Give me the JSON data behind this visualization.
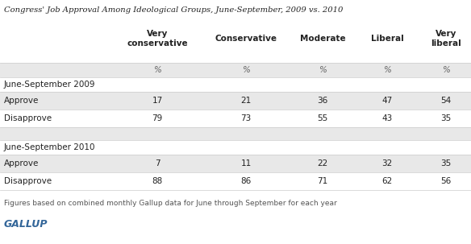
{
  "title": "Congress' Job Approval Among Ideological Groups, June-September, 2009 vs. 2010",
  "columns": [
    "Very\nconservative",
    "Conservative",
    "Moderate",
    "Liberal",
    "Very\nliberal"
  ],
  "pct_label": "%",
  "section1_label": "June-September 2009",
  "section2_label": "June-September 2010",
  "rows": [
    {
      "label": "Approve",
      "values": [
        17,
        21,
        36,
        47,
        54
      ]
    },
    {
      "label": "Disapprove",
      "values": [
        79,
        73,
        55,
        43,
        35
      ]
    },
    {
      "label": "Approve",
      "values": [
        7,
        11,
        22,
        32,
        35
      ]
    },
    {
      "label": "Disapprove",
      "values": [
        88,
        86,
        71,
        62,
        56
      ]
    }
  ],
  "footnote": "Figures based on combined monthly Gallup data for June through September for each year",
  "source": "GALLUP",
  "white_color": "#ffffff",
  "stripe_color": "#e8e8e8",
  "text_color": "#222222",
  "gray_text": "#666666",
  "gallup_color": "#336699"
}
